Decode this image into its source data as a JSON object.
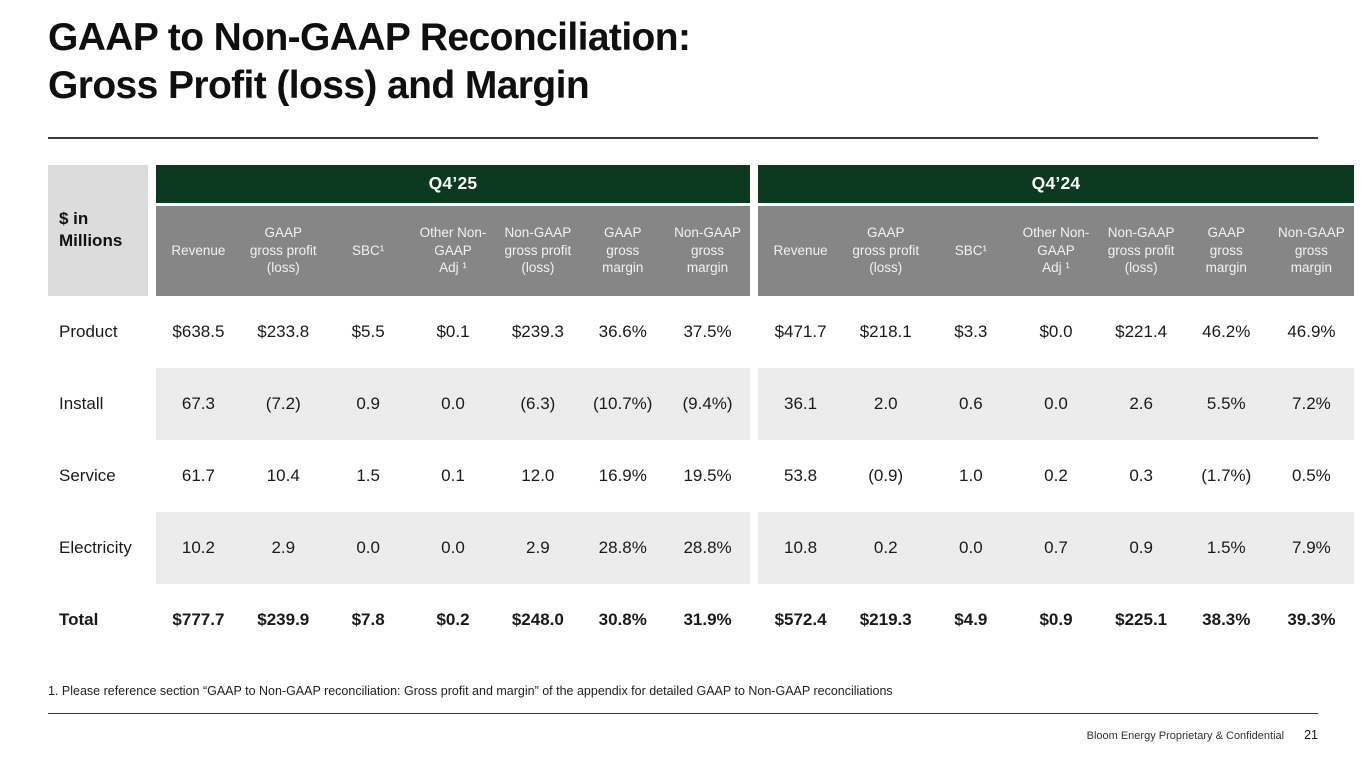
{
  "title": {
    "line1": "GAAP to Non-GAAP Reconciliation:",
    "line2": "Gross Profit (loss) and Margin"
  },
  "table": {
    "corner_label": "$ in\nMillions",
    "periods": [
      "Q4’25",
      "Q4’24"
    ],
    "columns": [
      "Revenue",
      "GAAP\ngross profit\n(loss)",
      "SBC¹",
      "Other Non-\nGAAP\nAdj ¹",
      "Non-GAAP\ngross profit\n(loss)",
      "GAAP\ngross\nmargin",
      "Non-GAAP\ngross\nmargin"
    ],
    "rows": [
      {
        "label": "Product",
        "q425": [
          "$638.5",
          "$233.8",
          "$5.5",
          "$0.1",
          "$239.3",
          "36.6%",
          "37.5%"
        ],
        "q424": [
          "$471.7",
          "$218.1",
          "$3.3",
          "$0.0",
          "$221.4",
          "46.2%",
          "46.9%"
        ]
      },
      {
        "label": "Install",
        "q425": [
          "67.3",
          "(7.2)",
          "0.9",
          "0.0",
          "(6.3)",
          "(10.7%)",
          "(9.4%)"
        ],
        "q424": [
          "36.1",
          "2.0",
          "0.6",
          "0.0",
          "2.6",
          "5.5%",
          "7.2%"
        ]
      },
      {
        "label": "Service",
        "q425": [
          "61.7",
          "10.4",
          "1.5",
          "0.1",
          "12.0",
          "16.9%",
          "19.5%"
        ],
        "q424": [
          "53.8",
          "(0.9)",
          "1.0",
          "0.2",
          "0.3",
          "(1.7%)",
          "0.5%"
        ]
      },
      {
        "label": "Electricity",
        "q425": [
          "10.2",
          "2.9",
          "0.0",
          "0.0",
          "2.9",
          "28.8%",
          "28.8%"
        ],
        "q424": [
          "10.8",
          "0.2",
          "0.0",
          "0.7",
          "0.9",
          "1.5%",
          "7.9%"
        ]
      },
      {
        "label": "Total",
        "q425": [
          "$777.7",
          "$239.9",
          "$7.8",
          "$0.2",
          "$248.0",
          "30.8%",
          "31.9%"
        ],
        "q424": [
          "$572.4",
          "$219.3",
          "$4.9",
          "$0.9",
          "$225.1",
          "38.3%",
          "39.3%"
        ]
      }
    ]
  },
  "footnote": "1. Please reference section “GAAP to Non-GAAP reconciliation: Gross profit and margin” of the appendix for detailed GAAP to Non-GAAP reconciliations",
  "footer": {
    "confidential": "Bloom Energy Proprietary & Confidential",
    "page_number": "21"
  },
  "colors": {
    "header_green": "#0c3a21",
    "header_gray": "#868686",
    "corner_gray": "#dcdcdc",
    "stripe_gray": "#ececec"
  }
}
